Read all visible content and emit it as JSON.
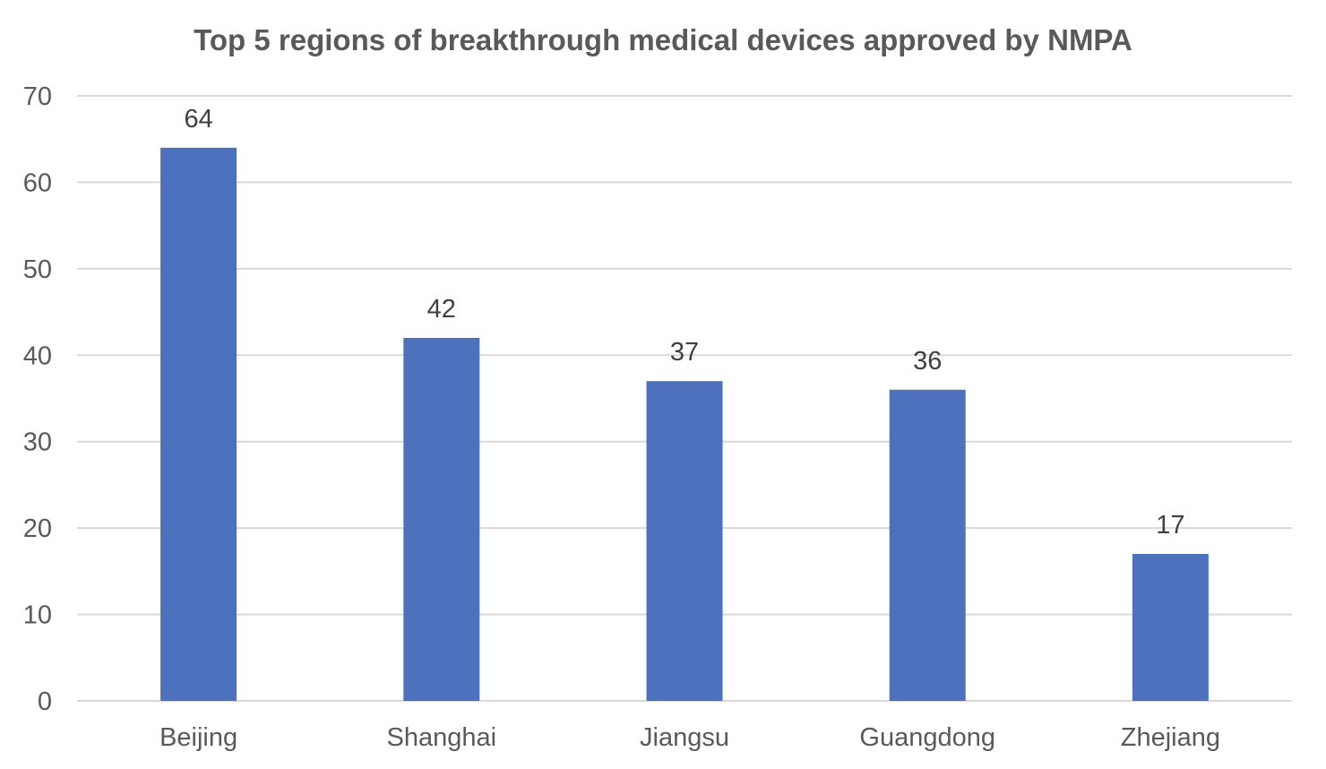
{
  "chart_data": {
    "type": "bar",
    "title": "Top 5 regions of breakthrough medical devices approved by NMPA",
    "categories": [
      "Beijing",
      "Shanghai",
      "Jiangsu",
      "Guangdong",
      "Zhejiang"
    ],
    "values": [
      64,
      42,
      37,
      36,
      17
    ],
    "ylim": [
      0,
      70
    ],
    "yticks": [
      0,
      10,
      20,
      30,
      40,
      50,
      60,
      70
    ],
    "xlabel": "",
    "ylabel": "",
    "grid": true,
    "legend": "none",
    "bar_color": "#4e71be",
    "data_labels": true
  }
}
